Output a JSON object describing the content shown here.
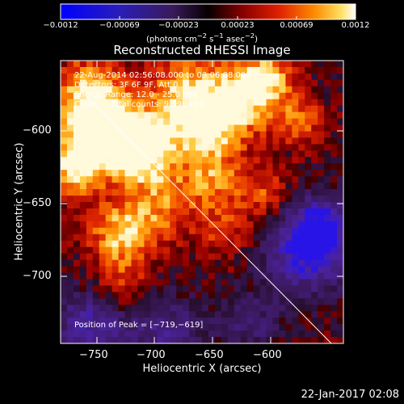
{
  "colorbar": {
    "ticks": [
      "−0.0012",
      "−0.00069",
      "−0.00023",
      "0.00023",
      "0.00069",
      "0.0012"
    ],
    "units_html": "(photons cm<sup>−2</sup> s<sup>−1</sup> asec<sup>−2</sup>)"
  },
  "image_title": "Reconstructed RHESSI Image",
  "info_lines": [
    "22-Aug-2014 02:56:08.000 to 03:06:08.000",
    "Detectors: 3F 6F 9F, Att 0",
    "Energy Range: 12.0 - 25.0 keV",
    "Clean     Total counts: 9.39E+03"
  ],
  "peak_text": "Position of Peak = [−719,−619]",
  "x_axis": {
    "label": "Heliocentric X (arcsec)",
    "ticks": [
      "−750",
      "−700",
      "−650",
      "−600"
    ]
  },
  "y_axis": {
    "label": "Heliocentric Y (arcsec)",
    "ticks": [
      "−600",
      "−650",
      "−700"
    ]
  },
  "footer_timestamp": "22-Jan-2017 02:08",
  "colors": {
    "background": "#000000",
    "text": "#ffffff",
    "limb_line": "#ffffff",
    "negative_scale": [
      "#0000ff",
      "#3a1a9a",
      "#3a1b5f",
      "#1a0a20"
    ],
    "positive_scale": [
      "#1a0000",
      "#8a0000",
      "#d41a00",
      "#ff6a00",
      "#ffc040",
      "#ffffff"
    ]
  }
}
